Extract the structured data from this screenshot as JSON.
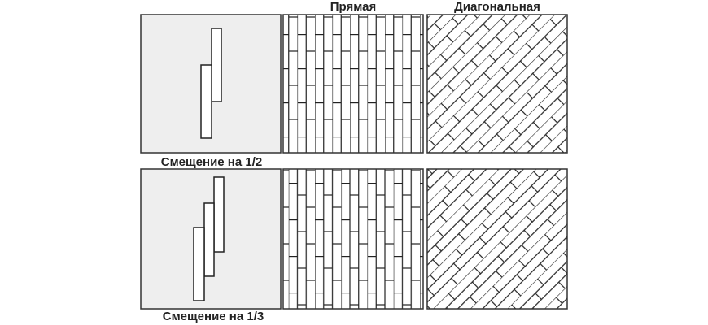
{
  "columns": [
    "Прямая",
    "Диагональная"
  ],
  "rows": [
    {
      "label": "Смещение на 1/2"
    },
    {
      "label": "Смещение на 1/3"
    }
  ]
}
